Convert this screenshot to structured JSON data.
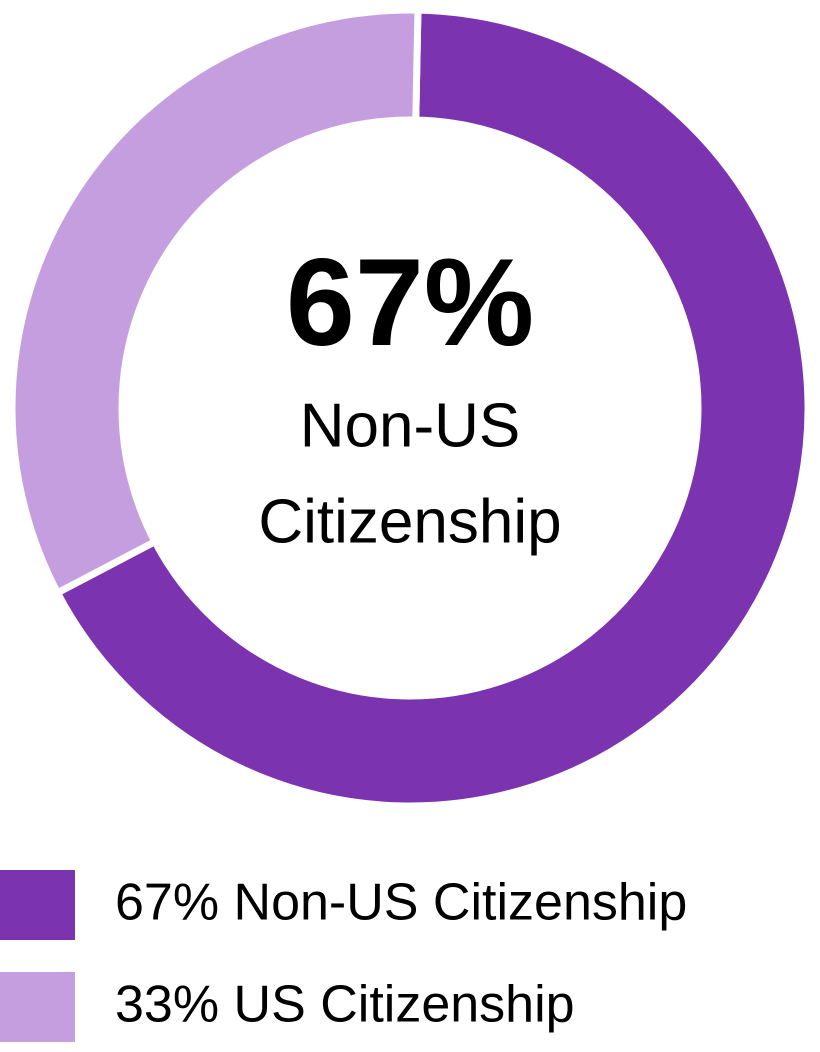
{
  "chart_data": {
    "type": "donut",
    "categories": [
      "67% Non-US Citizenship",
      "33% US Citizenship"
    ],
    "values": [
      67,
      33
    ],
    "colors": [
      "#7b33b0",
      "#c59ee0"
    ],
    "center_value_label": "67%",
    "center_label_lines": [
      "Non-US",
      "Citizenship"
    ]
  }
}
